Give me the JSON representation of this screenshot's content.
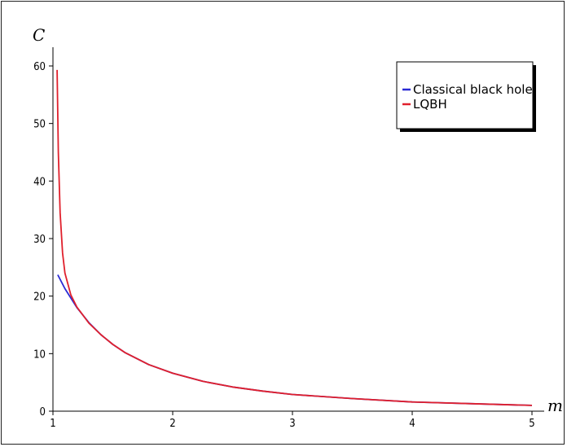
{
  "chart_data": {
    "type": "line",
    "title": "",
    "xlabel": "m",
    "ylabel": "C",
    "xlim": [
      1,
      5
    ],
    "ylim": [
      0,
      60
    ],
    "x_ticks": [
      "1",
      "2",
      "3",
      "4",
      "5"
    ],
    "y_ticks": [
      "0",
      "10",
      "20",
      "30",
      "40",
      "50",
      "60"
    ],
    "grid": false,
    "legend_position": "top-right",
    "series": [
      {
        "name": "Classical black hole",
        "color": "#2a2ad4",
        "x": [
          1.04,
          1.1,
          1.2,
          1.3,
          1.4,
          1.5,
          1.6,
          1.8,
          2.0,
          2.25,
          2.5,
          2.75,
          3.0,
          3.5,
          4.0,
          4.5,
          5.0
        ],
        "y": [
          23.7,
          21.3,
          18.0,
          15.4,
          13.3,
          11.6,
          10.2,
          8.1,
          6.6,
          5.2,
          4.2,
          3.5,
          2.9,
          2.2,
          1.6,
          1.3,
          1.0
        ]
      },
      {
        "name": "LQBH",
        "color": "#e0202c",
        "x": [
          1.035,
          1.045,
          1.06,
          1.08,
          1.1,
          1.15,
          1.2,
          1.3,
          1.4,
          1.5,
          1.6,
          1.8,
          2.0,
          2.25,
          2.5,
          2.75,
          3.0,
          3.5,
          4.0,
          4.5,
          5.0
        ],
        "y": [
          59.3,
          45.0,
          34.5,
          27.5,
          24.0,
          20.2,
          18.1,
          15.3,
          13.3,
          11.6,
          10.2,
          8.1,
          6.6,
          5.2,
          4.2,
          3.5,
          2.9,
          2.2,
          1.6,
          1.3,
          1.0
        ]
      }
    ]
  }
}
